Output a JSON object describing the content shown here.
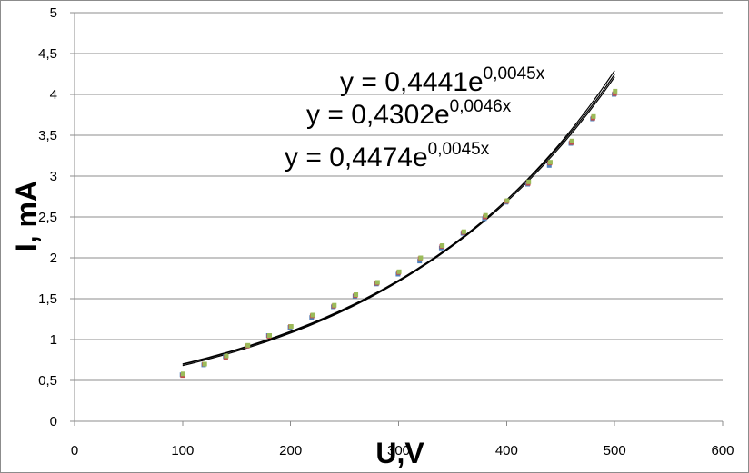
{
  "chart_data": {
    "type": "scatter",
    "title": "",
    "xlabel": "U,V",
    "ylabel": "I, mA",
    "xlim": [
      0,
      600
    ],
    "ylim": [
      0,
      5
    ],
    "x_ticks": [
      0,
      100,
      200,
      300,
      400,
      500,
      600
    ],
    "x_tick_labels": [
      "0",
      "100",
      "200",
      "300",
      "400",
      "500",
      "600"
    ],
    "y_ticks": [
      0,
      0.5,
      1,
      1.5,
      2,
      2.5,
      3,
      3.5,
      4,
      4.5,
      5
    ],
    "y_tick_labels": [
      "0",
      "0,5",
      "1",
      "1,5",
      "2",
      "2,5",
      "3",
      "3,5",
      "4",
      "4,5",
      "5"
    ],
    "grid": "horizontal",
    "legend": "none",
    "x": [
      100,
      120,
      140,
      160,
      180,
      200,
      220,
      240,
      260,
      280,
      300,
      320,
      340,
      360,
      380,
      400,
      420,
      440,
      460,
      480,
      500
    ],
    "series": [
      {
        "color": "#4f81bd",
        "marker": "square",
        "values": [
          0.57,
          0.69,
          0.79,
          0.92,
          1.05,
          1.15,
          1.27,
          1.4,
          1.53,
          1.68,
          1.8,
          1.96,
          2.12,
          2.3,
          2.48,
          2.68,
          2.9,
          3.13,
          3.4,
          3.7,
          4.0
        ]
      },
      {
        "color": "#c0504d",
        "marker": "square",
        "values": [
          0.56,
          0.7,
          0.78,
          0.92,
          1.04,
          1.16,
          1.29,
          1.41,
          1.54,
          1.69,
          1.82,
          1.99,
          2.14,
          2.31,
          2.5,
          2.69,
          2.91,
          3.16,
          3.41,
          3.71,
          4.01
        ]
      },
      {
        "color": "#9bbb59",
        "marker": "square",
        "values": [
          0.58,
          0.7,
          0.8,
          0.93,
          1.05,
          1.16,
          1.3,
          1.42,
          1.55,
          1.7,
          1.83,
          2.0,
          2.15,
          2.32,
          2.52,
          2.7,
          2.93,
          3.17,
          3.43,
          3.73,
          4.04
        ]
      }
    ],
    "trendlines": [
      {
        "type": "exponential",
        "a": 0.4441,
        "b": 0.0045,
        "label_prefix": "y = 0,4441e",
        "label_exponent": "0,0045x"
      },
      {
        "type": "exponential",
        "a": 0.4302,
        "b": 0.0046,
        "label_prefix": "y = 0,4302e",
        "label_exponent": "0,0046x"
      },
      {
        "type": "exponential",
        "a": 0.4474,
        "b": 0.0045,
        "label_prefix": "y = 0,4474e",
        "label_exponent": "0,0045x"
      }
    ]
  }
}
